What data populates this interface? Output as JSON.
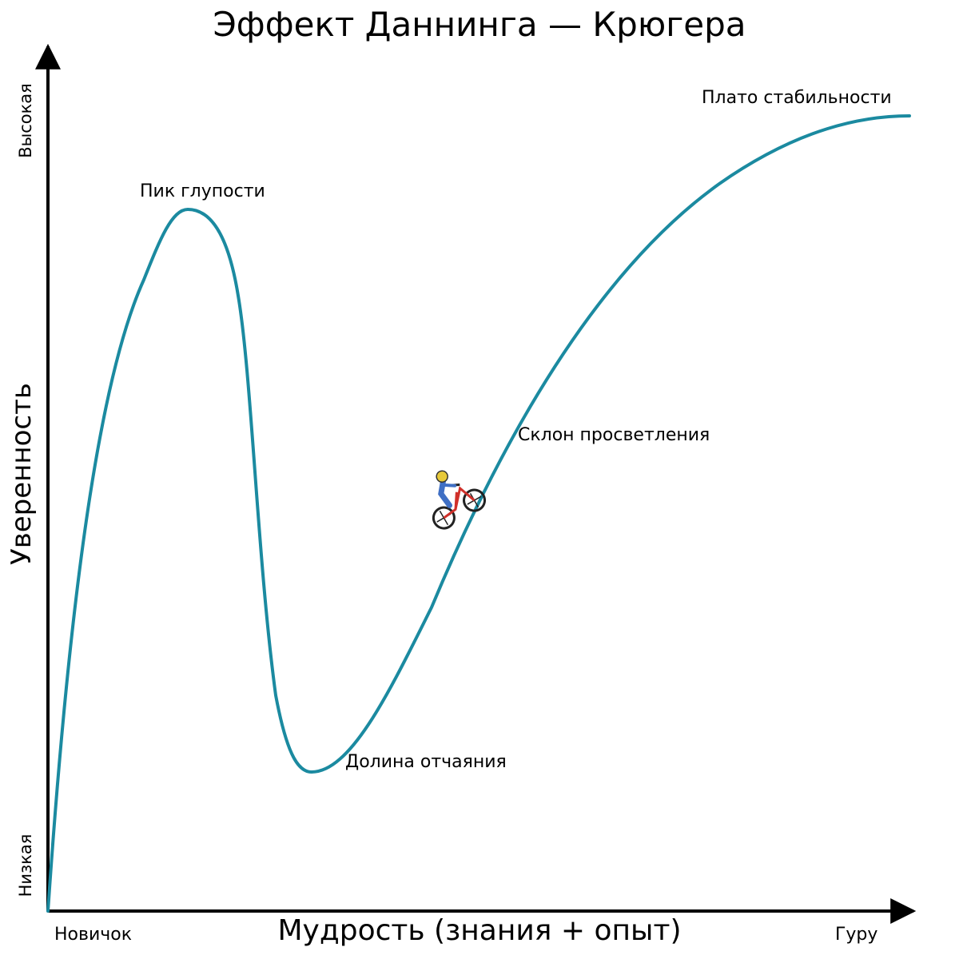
{
  "title": "Эффект Даннинга — Крюгера",
  "axes": {
    "x_label": "Мудрость (знания + опыт)",
    "x_low": "Новичок",
    "x_high": "Гуру",
    "y_label": "Уверенность",
    "y_low": "Низкая",
    "y_high": "Высокая"
  },
  "annotations": {
    "peak": "Пик глупости",
    "valley": "Долина отчаяния",
    "slope": "Склон просветления",
    "plateau": "Плато стабильности"
  },
  "colors": {
    "curve": "#1b8aa0",
    "axes": "#000000"
  },
  "icons": {
    "rider": "bmx-rider-icon"
  }
}
